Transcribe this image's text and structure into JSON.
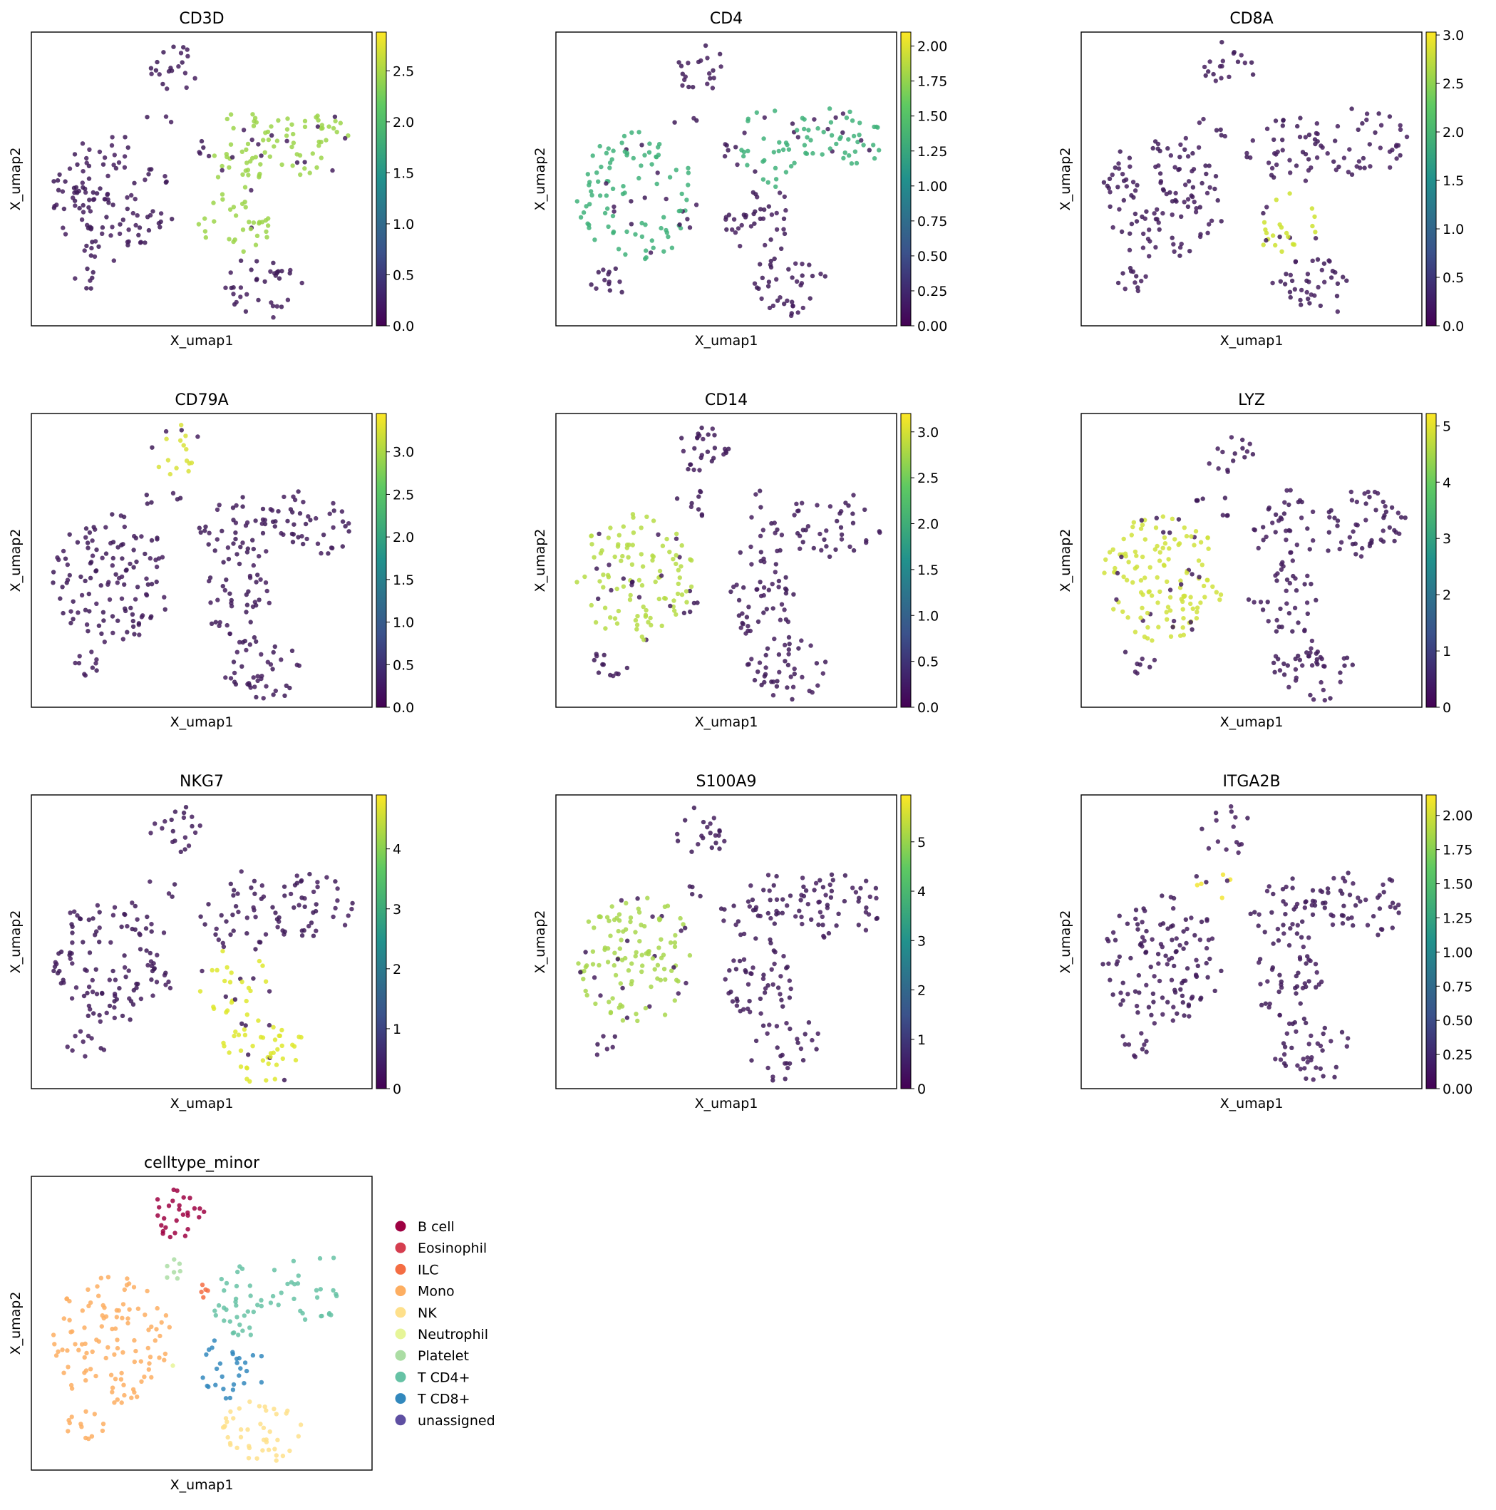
{
  "figure": {
    "panels": [
      {
        "title": "CD3D",
        "xlabel": "X_umap1",
        "ylabel": "X_umap2",
        "highlight": "cd3",
        "colorbar": {
          "min": 0,
          "max": 2.88,
          "ticks": [
            "0.0",
            "0.5",
            "1.0",
            "1.5",
            "2.0",
            "2.5"
          ],
          "values": [
            0,
            0.5,
            1.0,
            1.5,
            2.0,
            2.5
          ]
        }
      },
      {
        "title": "CD4",
        "xlabel": "X_umap1",
        "ylabel": "X_umap2",
        "highlight": "cd4",
        "colorbar": {
          "min": 0,
          "max": 2.1,
          "ticks": [
            "0.00",
            "0.25",
            "0.50",
            "0.75",
            "1.00",
            "1.25",
            "1.50",
            "1.75",
            "2.00"
          ],
          "values": [
            0,
            0.25,
            0.5,
            0.75,
            1.0,
            1.25,
            1.5,
            1.75,
            2.0
          ]
        }
      },
      {
        "title": "CD8A",
        "xlabel": "X_umap1",
        "ylabel": "X_umap2",
        "highlight": "cd8",
        "colorbar": {
          "min": 0,
          "max": 3.03,
          "ticks": [
            "0.0",
            "0.5",
            "1.0",
            "1.5",
            "2.0",
            "2.5",
            "3.0"
          ],
          "values": [
            0,
            0.5,
            1.0,
            1.5,
            2.0,
            2.5,
            3.0
          ]
        }
      },
      {
        "title": "CD79A",
        "xlabel": "X_umap1",
        "ylabel": "X_umap2",
        "highlight": "bcell",
        "colorbar": {
          "min": 0,
          "max": 3.45,
          "ticks": [
            "0.0",
            "0.5",
            "1.0",
            "1.5",
            "2.0",
            "2.5",
            "3.0"
          ],
          "values": [
            0,
            0.5,
            1.0,
            1.5,
            2.0,
            2.5,
            3.0
          ]
        }
      },
      {
        "title": "CD14",
        "xlabel": "X_umap1",
        "ylabel": "X_umap2",
        "highlight": "mono",
        "colorbar": {
          "min": 0,
          "max": 3.2,
          "ticks": [
            "0.0",
            "0.5",
            "1.0",
            "1.5",
            "2.0",
            "2.5",
            "3.0"
          ],
          "values": [
            0,
            0.5,
            1.0,
            1.5,
            2.0,
            2.5,
            3.0
          ]
        }
      },
      {
        "title": "LYZ",
        "xlabel": "X_umap1",
        "ylabel": "X_umap2",
        "highlight": "lyz",
        "colorbar": {
          "min": 0,
          "max": 5.22,
          "ticks": [
            "0",
            "1",
            "2",
            "3",
            "4",
            "5"
          ],
          "values": [
            0,
            1,
            2,
            3,
            4,
            5
          ]
        }
      },
      {
        "title": "NKG7",
        "xlabel": "X_umap1",
        "ylabel": "X_umap2",
        "highlight": "nk",
        "colorbar": {
          "min": 0,
          "max": 4.9,
          "ticks": [
            "0",
            "1",
            "2",
            "3",
            "4"
          ],
          "values": [
            0,
            1,
            2,
            3,
            4
          ]
        }
      },
      {
        "title": "S100A9",
        "xlabel": "X_umap1",
        "ylabel": "X_umap2",
        "highlight": "s100",
        "colorbar": {
          "min": 0,
          "max": 5.95,
          "ticks": [
            "0",
            "1",
            "2",
            "3",
            "4",
            "5"
          ],
          "values": [
            0,
            1,
            2,
            3,
            4,
            5
          ]
        }
      },
      {
        "title": "ITGA2B",
        "xlabel": "X_umap1",
        "ylabel": "X_umap2",
        "highlight": "platelet",
        "colorbar": {
          "min": 0,
          "max": 2.15,
          "ticks": [
            "0.00",
            "0.25",
            "0.50",
            "0.75",
            "1.00",
            "1.25",
            "1.50",
            "1.75",
            "2.00"
          ],
          "values": [
            0,
            0.25,
            0.5,
            0.75,
            1.0,
            1.25,
            1.5,
            1.75,
            2.0
          ]
        }
      },
      {
        "title": "celltype_minor",
        "xlabel": "X_umap1",
        "ylabel": "X_umap2",
        "highlight": "categorical"
      }
    ],
    "colormap": [
      "#440154",
      "#3b528b",
      "#21918c",
      "#5ec962",
      "#fde725"
    ],
    "legend": [
      {
        "label": "B cell",
        "color": "#9e0142"
      },
      {
        "label": "Eosinophil",
        "color": "#d53e4f"
      },
      {
        "label": "ILC",
        "color": "#f46d43"
      },
      {
        "label": "Mono",
        "color": "#fdae61"
      },
      {
        "label": "NK",
        "color": "#fee08b"
      },
      {
        "label": "Neutrophil",
        "color": "#e6f598"
      },
      {
        "label": "Platelet",
        "color": "#abdda4"
      },
      {
        "label": "T CD4+",
        "color": "#66c2a5"
      },
      {
        "label": "T CD8+",
        "color": "#3288bd"
      },
      {
        "label": "unassigned",
        "color": "#5e4fa2"
      }
    ]
  },
  "chart_data": [
    {
      "type": "scatter",
      "title": "CD3D",
      "xlabel": "X_umap1",
      "ylabel": "X_umap2",
      "colorbar_range": [
        0,
        2.88
      ],
      "colorbar_ticks": [
        0,
        0.5,
        1.0,
        1.5,
        2.0,
        2.5
      ]
    },
    {
      "type": "scatter",
      "title": "CD4",
      "xlabel": "X_umap1",
      "ylabel": "X_umap2",
      "colorbar_range": [
        0,
        2.1
      ],
      "colorbar_ticks": [
        0,
        0.25,
        0.5,
        0.75,
        1.0,
        1.25,
        1.5,
        1.75,
        2.0
      ]
    },
    {
      "type": "scatter",
      "title": "CD8A",
      "xlabel": "X_umap1",
      "ylabel": "X_umap2",
      "colorbar_range": [
        0,
        3.03
      ],
      "colorbar_ticks": [
        0,
        0.5,
        1.0,
        1.5,
        2.0,
        2.5,
        3.0
      ]
    },
    {
      "type": "scatter",
      "title": "CD79A",
      "xlabel": "X_umap1",
      "ylabel": "X_umap2",
      "colorbar_range": [
        0,
        3.45
      ],
      "colorbar_ticks": [
        0,
        0.5,
        1.0,
        1.5,
        2.0,
        2.5,
        3.0
      ]
    },
    {
      "type": "scatter",
      "title": "CD14",
      "xlabel": "X_umap1",
      "ylabel": "X_umap2",
      "colorbar_range": [
        0,
        3.2
      ],
      "colorbar_ticks": [
        0,
        0.5,
        1.0,
        1.5,
        2.0,
        2.5,
        3.0
      ]
    },
    {
      "type": "scatter",
      "title": "LYZ",
      "xlabel": "X_umap1",
      "ylabel": "X_umap2",
      "colorbar_range": [
        0,
        5.22
      ],
      "colorbar_ticks": [
        0,
        1,
        2,
        3,
        4,
        5
      ]
    },
    {
      "type": "scatter",
      "title": "NKG7",
      "xlabel": "X_umap1",
      "ylabel": "X_umap2",
      "colorbar_range": [
        0,
        4.9
      ],
      "colorbar_ticks": [
        0,
        1,
        2,
        3,
        4
      ]
    },
    {
      "type": "scatter",
      "title": "S100A9",
      "xlabel": "X_umap1",
      "ylabel": "X_umap2",
      "colorbar_range": [
        0,
        5.95
      ],
      "colorbar_ticks": [
        0,
        1,
        2,
        3,
        4,
        5
      ]
    },
    {
      "type": "scatter",
      "title": "ITGA2B",
      "xlabel": "X_umap1",
      "ylabel": "X_umap2",
      "colorbar_range": [
        0,
        2.15
      ],
      "colorbar_ticks": [
        0,
        0.25,
        0.5,
        0.75,
        1.0,
        1.25,
        1.5,
        1.75,
        2.0
      ]
    },
    {
      "type": "scatter",
      "title": "celltype_minor",
      "xlabel": "X_umap1",
      "ylabel": "X_umap2",
      "categories": [
        "B cell",
        "Eosinophil",
        "ILC",
        "Mono",
        "NK",
        "Neutrophil",
        "Platelet",
        "T CD4+",
        "T CD8+",
        "unassigned"
      ],
      "legend_placement": "right"
    }
  ]
}
